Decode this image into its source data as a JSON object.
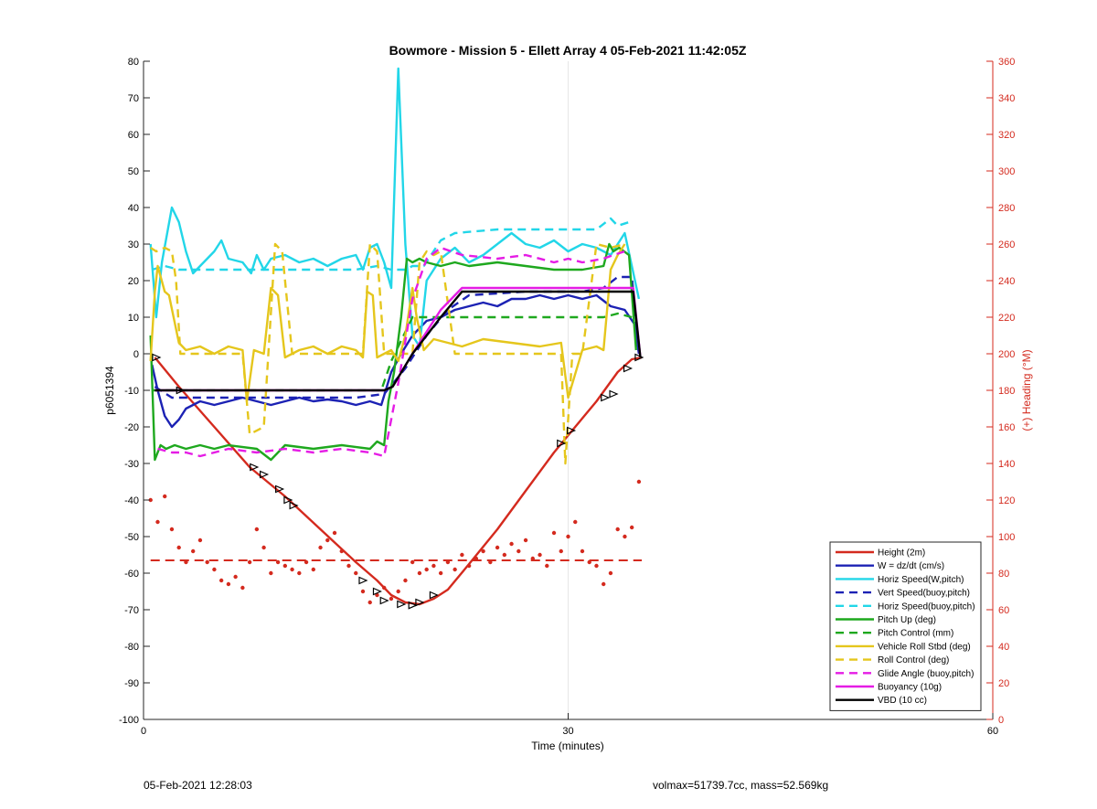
{
  "chart_data": {
    "type": "line",
    "title": "Bowmore - Mission 5 - Ellett Array 4 05-Feb-2021 11:42:05Z",
    "xlabel": "Time (minutes)",
    "ylabel": "p6051394",
    "y2label": "(+) Heading (°M)",
    "xlim": [
      0,
      60
    ],
    "ylim": [
      -100,
      80
    ],
    "y2lim": [
      0,
      360
    ],
    "xticks": [
      0,
      30,
      60
    ],
    "yticks": [
      -100,
      -90,
      -80,
      -70,
      -60,
      -50,
      -40,
      -30,
      -20,
      -10,
      0,
      10,
      20,
      30,
      40,
      50,
      60,
      70,
      80
    ],
    "y2ticks": [
      0,
      20,
      40,
      60,
      80,
      100,
      120,
      140,
      160,
      180,
      200,
      220,
      240,
      260,
      280,
      300,
      320,
      340,
      360
    ],
    "grid": "x-only",
    "legend_position": "bottom-right",
    "series": [
      {
        "name": "Height (2m)",
        "color": "#d42a1e",
        "style": "solid",
        "x": [
          0.8,
          2.5,
          5,
          7.5,
          10,
          12.5,
          15,
          16.5,
          17.5,
          18.5,
          19.5,
          20.5,
          21.5,
          23,
          25,
          27,
          29,
          30.5,
          32,
          33.5,
          34.5,
          35.2
        ],
        "y": [
          -1,
          -9,
          -20,
          -31,
          -39,
          -48,
          -57,
          -62,
          -66,
          -68,
          -68.5,
          -67,
          -64.5,
          -57.5,
          -48,
          -37.5,
          -27,
          -20,
          -13,
          -5,
          -1.5,
          -1
        ]
      },
      {
        "name": "W = dz/dt (cm/s)",
        "color": "#1c22b4",
        "style": "solid",
        "x": [
          0.6,
          1.0,
          1.5,
          2.0,
          2.5,
          3.0,
          4,
          5,
          6,
          7,
          8,
          9,
          10,
          11,
          12,
          13,
          14,
          15,
          16,
          16.8,
          17.5,
          18.2,
          19,
          20,
          21,
          22,
          23,
          24,
          25,
          26,
          27,
          28,
          29,
          30,
          31,
          32,
          33,
          34,
          34.7,
          35.0
        ],
        "y": [
          -3,
          -10,
          -17,
          -20,
          -18,
          -15,
          -13,
          -14,
          -13,
          -12,
          -13,
          -14,
          -13,
          -12,
          -13,
          -12.5,
          -13,
          -14,
          -13,
          -14,
          -5,
          0,
          5,
          9,
          10,
          12,
          13,
          14,
          13,
          15,
          15,
          16,
          15,
          16,
          15,
          16,
          13,
          12,
          8,
          0
        ]
      },
      {
        "name": "Horiz Speed(W,pitch)",
        "color": "#22d6e8",
        "style": "solid",
        "x": [
          0.5,
          0.9,
          1.3,
          2.0,
          2.5,
          3,
          3.5,
          4,
          5,
          5.5,
          6,
          7,
          7.6,
          8,
          8.5,
          9,
          10,
          11,
          12,
          13,
          14,
          15,
          15.5,
          16,
          16.5,
          17,
          17.5,
          18.0,
          18.5,
          19,
          19.5,
          20,
          21,
          22,
          23,
          24,
          25,
          26,
          27,
          28,
          29,
          30,
          31,
          32,
          33,
          34,
          35
        ],
        "y": [
          30,
          10,
          25,
          40,
          36,
          28,
          22,
          24,
          28,
          31,
          26,
          25,
          22,
          27,
          23,
          26,
          27,
          25,
          26,
          24,
          26,
          27,
          23,
          29,
          30,
          25,
          18,
          78,
          30,
          5,
          2,
          20,
          26,
          29,
          25,
          27,
          30,
          33,
          30,
          29,
          31,
          28,
          30,
          29,
          27,
          33,
          15
        ]
      },
      {
        "name": "Vert Speed(buoy,pitch)",
        "color": "#1c22b4",
        "style": "dashed",
        "x": [
          0.8,
          2,
          5,
          10,
          15,
          17,
          18.5,
          20,
          21.5,
          23,
          27,
          31,
          32.5,
          33.5,
          34.5,
          35
        ],
        "y": [
          -9,
          -12,
          -12,
          -12,
          -12,
          -11,
          -4,
          5,
          12,
          16,
          17,
          17,
          18,
          21,
          21,
          0
        ]
      },
      {
        "name": "Horiz Speed(buoy,pitch)",
        "color": "#22d6e8",
        "style": "dashed",
        "x": [
          0.6,
          1.5,
          2.5,
          5,
          10,
          15,
          16.5,
          17.5,
          18.5,
          19,
          19.8,
          21,
          22,
          25,
          30,
          32,
          33,
          33.5,
          34.3
        ],
        "y": [
          23,
          24,
          23,
          23,
          23,
          23,
          24,
          23,
          23,
          24,
          24,
          31,
          33,
          34,
          34,
          34,
          37,
          35,
          36
        ]
      },
      {
        "name": "Pitch Up (deg)",
        "color": "#1ea81e",
        "style": "solid",
        "x": [
          0.5,
          0.8,
          1.2,
          1.6,
          2.2,
          3,
          4,
          5,
          6,
          8,
          9,
          10,
          12,
          14,
          16,
          16.5,
          17.0,
          17.3,
          17.7,
          18.2,
          18.6,
          19.0,
          19.5,
          20,
          21,
          22,
          23,
          25,
          27,
          29,
          31,
          32.5,
          32.9,
          33.2,
          33.6,
          34.3,
          34.8
        ],
        "y": [
          5,
          -29,
          -25,
          -26,
          -25,
          -26,
          -25,
          -26,
          -25,
          -26,
          -29,
          -25,
          -26,
          -25,
          -26,
          -24,
          -25,
          -13,
          -5,
          10,
          26,
          25,
          26,
          25,
          24,
          25,
          24,
          25,
          24,
          23,
          23,
          24,
          30,
          28,
          29,
          27,
          1
        ]
      },
      {
        "name": "Pitch Control (mm)",
        "color": "#1ea81e",
        "style": "dashed",
        "x": [
          0.6,
          16.8,
          17.5,
          19.0,
          20.5,
          32.5,
          33.5,
          34.5
        ],
        "y": [
          -10,
          -10,
          -2,
          10,
          10,
          10,
          11,
          10
        ]
      },
      {
        "name": "Vehicle Roll Stbd (deg)",
        "color": "#e5c61c",
        "style": "solid",
        "x": [
          0.5,
          0.8,
          1.0,
          1.5,
          1.8,
          2.5,
          3,
          4,
          5,
          6,
          7,
          7.3,
          7.8,
          8.5,
          9,
          9.5,
          10,
          11,
          12,
          13,
          14,
          15,
          15.5,
          15.8,
          16.2,
          16.5,
          17.0,
          17.5,
          18.0,
          18.5,
          19.0,
          19.3,
          19.8,
          20.5,
          21.5,
          22.5,
          24,
          26,
          28,
          29.5,
          30,
          31,
          32,
          32.5,
          33,
          33.5,
          34
        ],
        "y": [
          -2,
          17,
          24,
          17,
          16,
          3,
          1,
          2,
          0,
          2,
          1,
          -13,
          1,
          0,
          18,
          16,
          -1,
          1,
          2,
          0,
          2,
          1,
          -1,
          17,
          16,
          -1,
          0,
          1,
          -2,
          5,
          18,
          10,
          1,
          4,
          3,
          2,
          4,
          3,
          2,
          3,
          -12,
          1,
          2,
          1,
          23,
          27,
          30
        ]
      },
      {
        "name": "Roll Control (deg)",
        "color": "#e5c61c",
        "style": "dashed",
        "x": [
          0.5,
          0.9,
          1.5,
          2.0,
          2.3,
          2.6,
          3,
          6,
          7,
          7.5,
          8.5,
          9.3,
          9.8,
          10.5,
          15.5,
          16,
          16.5,
          17,
          19,
          19.5,
          20,
          20.5,
          21,
          22,
          29.5,
          29.8,
          30.3,
          31,
          32,
          33,
          34
        ],
        "y": [
          29,
          28,
          29,
          28,
          20,
          0,
          0,
          0,
          0,
          -22,
          -20,
          30,
          28,
          0,
          0,
          30,
          28,
          0,
          0,
          25,
          28,
          27,
          28,
          0,
          0,
          -30,
          0,
          0,
          30,
          29,
          30
        ]
      },
      {
        "name": "Glide Angle (buoy,pitch)",
        "color": "#e51ce5",
        "style": "dashed",
        "x": [
          1.0,
          2.0,
          3.0,
          4,
          6,
          8,
          10,
          12,
          14,
          16,
          17.0,
          18.0,
          19.0,
          20.0,
          21.0,
          22.5,
          25,
          27,
          29,
          30,
          31,
          32.5,
          33.2,
          34.0
        ],
        "y": [
          -26,
          -27,
          -27,
          -28,
          -26,
          -27,
          -26,
          -27,
          -26,
          -27,
          -28,
          -8,
          15,
          26,
          29,
          27,
          26,
          27,
          25,
          26,
          25,
          26,
          27,
          28
        ]
      },
      {
        "name": "Buoyancy (10g)",
        "color": "#e51ce5",
        "style": "solid",
        "x": [
          0.8,
          17,
          17.6,
          19,
          21,
          22.5,
          34.6,
          35.1
        ],
        "y": [
          -10,
          -10,
          -9,
          0,
          12,
          18,
          18,
          -1
        ]
      },
      {
        "name": "VBD (10 cc)",
        "color": "#000000",
        "style": "solid",
        "x": [
          0.8,
          17,
          17.6,
          19,
          21,
          22.5,
          34.6,
          35.1
        ],
        "y": [
          -10,
          -10,
          -9,
          0,
          10,
          17,
          17,
          -1
        ]
      }
    ],
    "heading_points": {
      "color": "#d42a1e",
      "axis": "right",
      "x": [
        0.5,
        1.0,
        1.5,
        2.0,
        2.5,
        3,
        3.5,
        4,
        4.5,
        5,
        5.5,
        6,
        6.5,
        7,
        7.5,
        8,
        8.5,
        9,
        9.5,
        10,
        10.5,
        11,
        11.5,
        12,
        12.5,
        13,
        13.5,
        14,
        14.5,
        15,
        15.5,
        16,
        16.5,
        17,
        17.5,
        18,
        18.5,
        19,
        19.5,
        20,
        20.5,
        21,
        21.5,
        22,
        22.5,
        23,
        23.5,
        24,
        24.5,
        25,
        25.5,
        26,
        26.5,
        27,
        27.5,
        28,
        28.5,
        29,
        29.5,
        30,
        30.5,
        31,
        31.5,
        32,
        32.5,
        33,
        33.5,
        34,
        34.5,
        35
      ],
      "y": [
        120,
        108,
        122,
        104,
        94,
        86,
        92,
        98,
        86,
        82,
        76,
        74,
        78,
        72,
        86,
        104,
        94,
        80,
        86,
        84,
        82,
        80,
        86,
        82,
        94,
        98,
        102,
        92,
        84,
        80,
        70,
        64,
        68,
        72,
        66,
        70,
        76,
        86,
        80,
        82,
        84,
        80,
        86,
        82,
        90,
        84,
        88,
        92,
        86,
        94,
        90,
        96,
        92,
        98,
        88,
        90,
        84,
        102,
        92,
        100,
        108,
        92,
        86,
        84,
        74,
        80,
        104,
        100,
        105,
        130
      ]
    },
    "heading_reference": {
      "value": 87,
      "color": "#d42a1e",
      "style": "dashed",
      "axis": "right"
    },
    "height_markers": {
      "x": [
        0.9,
        2.6,
        7.8,
        8.5,
        9.6,
        10.2,
        10.6,
        15.5,
        16.5,
        17.0,
        18.2,
        19.0,
        19.5,
        20.5,
        29.5,
        30.2,
        32.6,
        33.2,
        34.2,
        35.0
      ],
      "y": [
        -1,
        -10,
        -31,
        -33,
        -37,
        -40,
        -41.5,
        -62,
        -65,
        -67.5,
        -68.5,
        -68.8,
        -68,
        -66,
        -24.5,
        -21,
        -12,
        -11,
        -4,
        -1
      ]
    }
  },
  "footer": {
    "timestamp": "05-Feb-2021 12:28:03",
    "info": "volmax=51739.7cc, mass=52.569kg"
  }
}
